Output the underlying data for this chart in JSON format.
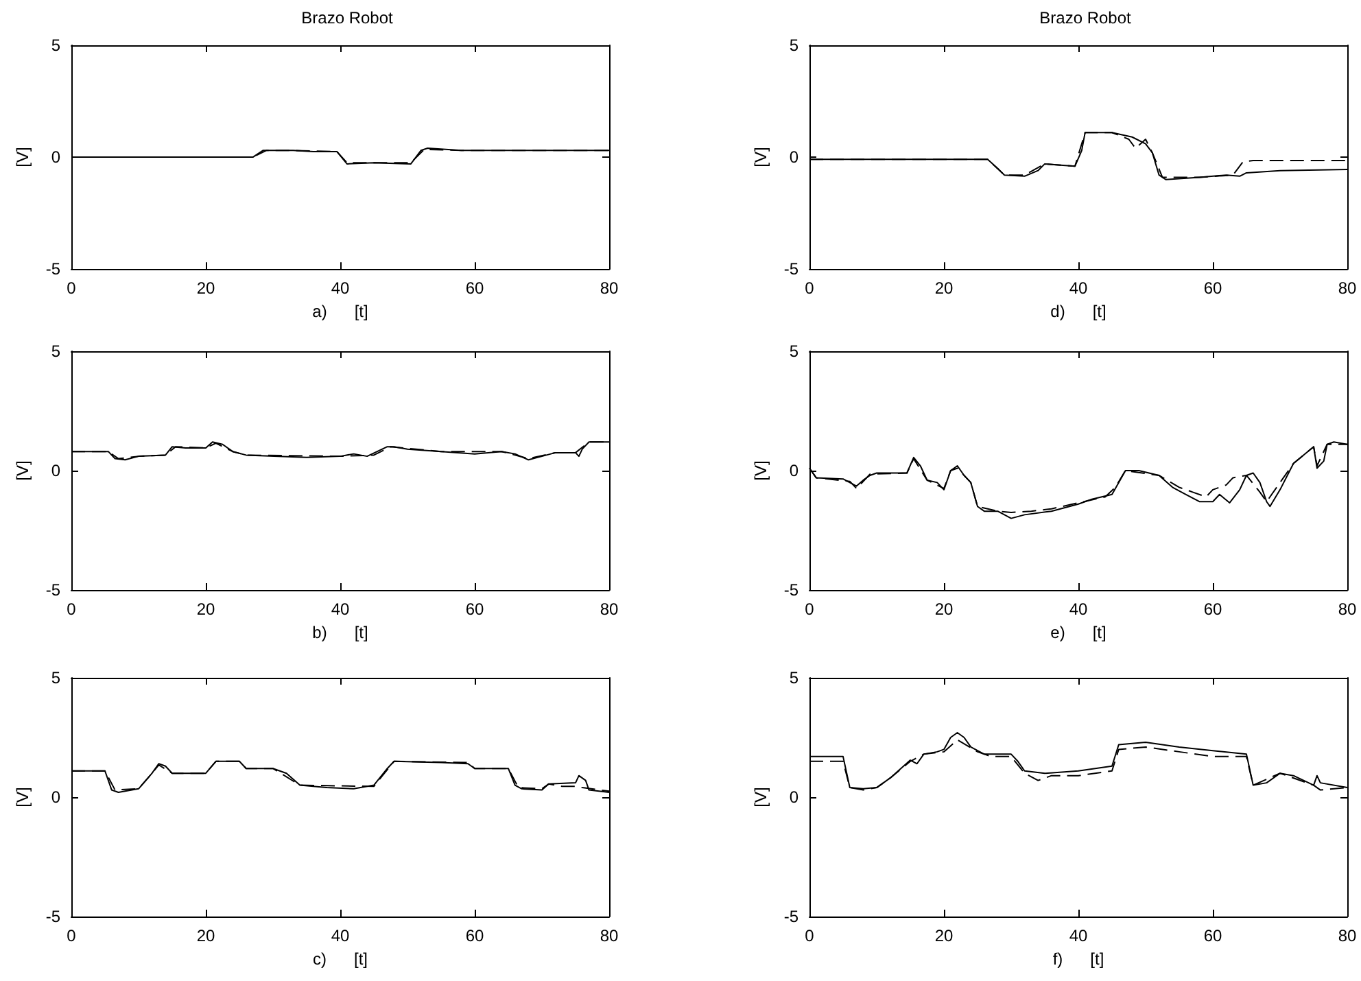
{
  "chart_data": [
    {
      "type": "line",
      "title": "Brazo Robot",
      "xlabel": "a)      [t]",
      "ylabel": "[V]",
      "xlim": [
        0,
        80
      ],
      "xticks": [
        0,
        20,
        40,
        60,
        80
      ],
      "ylim": [
        -5,
        5
      ],
      "yticks": [
        -5,
        0,
        5
      ],
      "grid": false,
      "marker": "none",
      "series": [
        {
          "color": "#000000",
          "line_style": "solid",
          "x": [
            0,
            27,
            28.5,
            30,
            33,
            36,
            39.5,
            41,
            45,
            50.5,
            52,
            53,
            58,
            80
          ],
          "values": [
            0,
            0,
            0.3,
            0.3,
            0.3,
            0.25,
            0.25,
            -0.3,
            -0.25,
            -0.3,
            0.3,
            0.4,
            0.3,
            0.3
          ]
        },
        {
          "color": "#000000",
          "line_style": "dashed",
          "x": [
            0,
            27,
            29,
            33,
            39.5,
            41,
            45,
            50.5,
            52.5,
            58,
            80
          ],
          "values": [
            0,
            0,
            0.3,
            0.3,
            0.25,
            -0.25,
            -0.25,
            -0.25,
            0.35,
            0.3,
            0.3
          ]
        }
      ]
    },
    {
      "type": "line",
      "xlabel": "b)      [t]",
      "ylabel": "[V]",
      "xlim": [
        0,
        80
      ],
      "xticks": [
        0,
        20,
        40,
        60,
        80
      ],
      "ylim": [
        -5,
        5
      ],
      "yticks": [
        -5,
        0,
        5
      ],
      "grid": false,
      "marker": "none",
      "series": [
        {
          "color": "#000000",
          "line_style": "solid",
          "x": [
            0,
            5.5,
            6.5,
            8,
            10,
            14,
            15,
            17,
            20,
            21,
            22.5,
            24,
            26,
            35,
            40,
            42,
            44,
            45.5,
            47,
            48,
            50,
            55,
            60,
            64,
            66,
            68,
            70,
            72,
            75,
            75.5,
            76,
            77,
            80
          ],
          "values": [
            0.8,
            0.8,
            0.5,
            0.45,
            0.6,
            0.65,
            1.0,
            0.95,
            0.95,
            1.2,
            1.1,
            0.8,
            0.65,
            0.55,
            0.6,
            0.7,
            0.6,
            0.8,
            1.0,
            1.0,
            0.9,
            0.8,
            0.7,
            0.8,
            0.7,
            0.45,
            0.6,
            0.75,
            0.75,
            0.6,
            0.9,
            1.2,
            1.2
          ]
        },
        {
          "color": "#000000",
          "line_style": "dashed",
          "x": [
            0,
            5.5,
            7,
            10,
            14,
            15.5,
            20,
            21.5,
            24,
            26,
            40,
            45,
            47.5,
            55,
            64,
            68,
            72,
            75,
            77,
            80
          ],
          "values": [
            0.8,
            0.8,
            0.5,
            0.6,
            0.65,
            1.0,
            0.95,
            1.15,
            0.8,
            0.65,
            0.6,
            0.65,
            1.0,
            0.8,
            0.8,
            0.5,
            0.75,
            0.75,
            1.2,
            1.2
          ]
        }
      ]
    },
    {
      "type": "line",
      "xlabel": "c)      [t]",
      "ylabel": "[V]",
      "xlim": [
        0,
        80
      ],
      "xticks": [
        0,
        20,
        40,
        60,
        80
      ],
      "ylim": [
        -5,
        5
      ],
      "yticks": [
        -5,
        0,
        5
      ],
      "grid": false,
      "marker": "none",
      "series": [
        {
          "color": "#000000",
          "line_style": "solid",
          "x": [
            0,
            5,
            6,
            7,
            10,
            12,
            13,
            14,
            15,
            20,
            21.5,
            25,
            26,
            30,
            32,
            34,
            38,
            42,
            45,
            47,
            48,
            55,
            59,
            60,
            65,
            66,
            67,
            70,
            71,
            75,
            75.5,
            76.5,
            77,
            80
          ],
          "values": [
            1.1,
            1.1,
            0.3,
            0.2,
            0.35,
            1.0,
            1.4,
            1.3,
            1.0,
            1.0,
            1.5,
            1.5,
            1.2,
            1.2,
            1.0,
            0.5,
            0.4,
            0.35,
            0.5,
            1.2,
            1.5,
            1.45,
            1.4,
            1.2,
            1.2,
            0.5,
            0.35,
            0.3,
            0.55,
            0.6,
            0.9,
            0.7,
            0.3,
            0.2
          ]
        },
        {
          "color": "#000000",
          "line_style": "dashed",
          "x": [
            0,
            5,
            6.5,
            10,
            12,
            13,
            15,
            20,
            21.5,
            25,
            26,
            30,
            34,
            45,
            48,
            59,
            60,
            65,
            66.5,
            70,
            71,
            73,
            75,
            76,
            80
          ],
          "values": [
            1.1,
            1.1,
            0.3,
            0.35,
            1.0,
            1.35,
            1.0,
            1.0,
            1.5,
            1.5,
            1.2,
            1.2,
            0.5,
            0.45,
            1.5,
            1.45,
            1.2,
            1.2,
            0.4,
            0.35,
            0.55,
            0.45,
            0.45,
            0.4,
            0.25
          ]
        }
      ]
    },
    {
      "type": "line",
      "title": "Brazo Robot",
      "xlabel": "d)      [t]",
      "ylabel": "[V]",
      "xlim": [
        0,
        80
      ],
      "xticks": [
        0,
        20,
        40,
        60,
        80
      ],
      "ylim": [
        -5,
        5
      ],
      "yticks": [
        -5,
        0,
        5
      ],
      "grid": false,
      "marker": "none",
      "series": [
        {
          "color": "#000000",
          "line_style": "solid",
          "x": [
            0,
            26.5,
            28,
            29,
            32,
            34,
            35,
            37,
            39.5,
            40.5,
            41,
            45,
            48,
            50,
            51,
            52,
            53,
            58,
            62,
            64,
            65,
            70,
            80
          ],
          "values": [
            -0.1,
            -0.1,
            -0.5,
            -0.8,
            -0.85,
            -0.6,
            -0.3,
            -0.35,
            -0.4,
            0.3,
            1.1,
            1.1,
            0.9,
            0.6,
            0.2,
            -0.8,
            -1.0,
            -0.9,
            -0.8,
            -0.85,
            -0.7,
            -0.6,
            -0.55
          ]
        },
        {
          "color": "#000000",
          "line_style": "dashed",
          "x": [
            0,
            26.5,
            29,
            32,
            35,
            39.5,
            41,
            45,
            47.5,
            48.5,
            50,
            51,
            52.5,
            58,
            63,
            64.5,
            66,
            80
          ],
          "values": [
            -0.1,
            -0.1,
            -0.8,
            -0.8,
            -0.3,
            -0.4,
            1.1,
            1.1,
            0.8,
            0.4,
            0.8,
            0.2,
            -0.9,
            -0.9,
            -0.8,
            -0.2,
            -0.15,
            -0.15
          ]
        }
      ]
    },
    {
      "type": "line",
      "xlabel": "e)      [t]",
      "ylabel": "[V]",
      "xlim": [
        0,
        80
      ],
      "xticks": [
        0,
        20,
        40,
        60,
        80
      ],
      "ylim": [
        -5,
        5
      ],
      "yticks": [
        -5,
        0,
        5
      ],
      "grid": false,
      "marker": "none",
      "series": [
        {
          "color": "#000000",
          "line_style": "solid",
          "x": [
            0,
            1,
            5,
            6,
            7,
            8,
            9,
            10,
            14.5,
            15.5,
            16.5,
            17.5,
            19,
            20,
            21,
            22,
            23,
            24,
            25,
            26,
            28,
            30,
            32,
            36,
            40,
            42,
            45,
            46,
            47,
            49,
            52,
            54,
            56,
            58,
            60,
            61,
            62.5,
            64,
            65,
            66,
            67,
            68,
            68.5,
            70,
            72,
            75,
            75.5,
            76.5,
            77,
            78,
            80
          ],
          "values": [
            0.1,
            -0.3,
            -0.35,
            -0.5,
            -0.65,
            -0.4,
            -0.2,
            -0.1,
            -0.1,
            0.55,
            0.2,
            -0.4,
            -0.5,
            -0.8,
            0.0,
            0.2,
            -0.2,
            -0.5,
            -1.5,
            -1.7,
            -1.7,
            -2.0,
            -1.85,
            -1.7,
            -1.4,
            -1.2,
            -1.0,
            -0.5,
            0.0,
            0.0,
            -0.2,
            -0.7,
            -1.0,
            -1.3,
            -1.3,
            -1.0,
            -1.35,
            -0.8,
            -0.2,
            -0.1,
            -0.5,
            -1.3,
            -1.5,
            -0.8,
            0.3,
            1.0,
            0.1,
            0.4,
            1.1,
            1.2,
            1.1
          ]
        },
        {
          "color": "#000000",
          "line_style": "dashed",
          "x": [
            0,
            1,
            6,
            7,
            9,
            14.5,
            15.5,
            17.5,
            20,
            21,
            22,
            24,
            25,
            28,
            30,
            33,
            36,
            40,
            44,
            45.5,
            47,
            52,
            55,
            57,
            59,
            60,
            62,
            63,
            65,
            67,
            68,
            70,
            72,
            75,
            75.5,
            77,
            80
          ],
          "values": [
            0.1,
            -0.3,
            -0.45,
            -0.75,
            -0.15,
            -0.1,
            0.5,
            -0.4,
            -0.75,
            0.0,
            0.1,
            -0.5,
            -1.5,
            -1.7,
            -1.75,
            -1.7,
            -1.6,
            -1.35,
            -1.1,
            -0.7,
            0.0,
            -0.2,
            -0.7,
            -0.9,
            -1.1,
            -0.8,
            -0.6,
            -0.3,
            -0.2,
            -0.9,
            -1.3,
            -0.5,
            0.3,
            1.0,
            0.2,
            1.1,
            1.1
          ]
        }
      ]
    },
    {
      "type": "line",
      "xlabel": "f)      [t]",
      "ylabel": "[V]",
      "xlim": [
        0,
        80
      ],
      "xticks": [
        0,
        20,
        40,
        60,
        80
      ],
      "ylim": [
        -5,
        5
      ],
      "yticks": [
        -5,
        0,
        5
      ],
      "grid": false,
      "marker": "none",
      "series": [
        {
          "color": "#000000",
          "line_style": "solid",
          "x": [
            0,
            5,
            6,
            8,
            10,
            12,
            15,
            16,
            17,
            19,
            20,
            21,
            22,
            23,
            24,
            26,
            30,
            31,
            32,
            35,
            40,
            45,
            46,
            50,
            55,
            60,
            65,
            66,
            68,
            70,
            72,
            75,
            75.5,
            76,
            80
          ],
          "values": [
            1.7,
            1.7,
            0.4,
            0.35,
            0.4,
            0.8,
            1.55,
            1.4,
            1.8,
            1.9,
            2.0,
            2.5,
            2.7,
            2.5,
            2.1,
            1.8,
            1.8,
            1.5,
            1.1,
            1.0,
            1.1,
            1.3,
            2.2,
            2.3,
            2.1,
            1.95,
            1.8,
            0.5,
            0.6,
            1.0,
            0.9,
            0.5,
            0.9,
            0.6,
            0.4
          ]
        },
        {
          "color": "#000000",
          "line_style": "dashed",
          "x": [
            0,
            5,
            6,
            8,
            10,
            12,
            15,
            17,
            20,
            22,
            25,
            27,
            30,
            32,
            34,
            36,
            40,
            45,
            46,
            50,
            55,
            60,
            65,
            66,
            70,
            75,
            76,
            80
          ],
          "values": [
            1.5,
            1.5,
            0.4,
            0.3,
            0.4,
            0.8,
            1.5,
            1.8,
            1.9,
            2.4,
            1.9,
            1.7,
            1.7,
            1.0,
            0.7,
            0.9,
            0.9,
            1.1,
            2.0,
            2.1,
            1.9,
            1.7,
            1.7,
            0.5,
            1.0,
            0.5,
            0.3,
            0.4
          ]
        }
      ]
    }
  ]
}
